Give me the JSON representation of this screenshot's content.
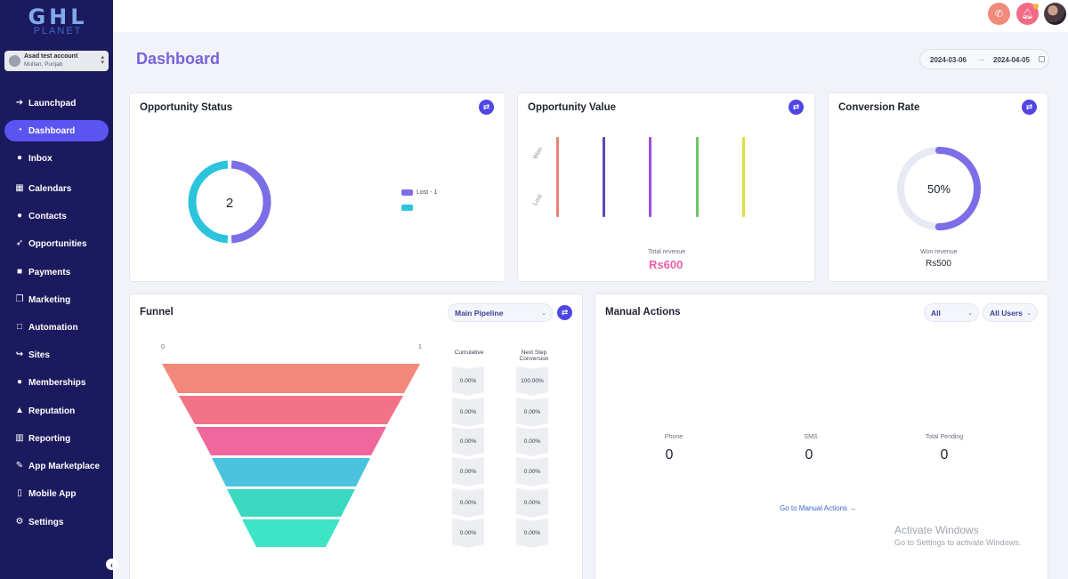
{
  "brand": {
    "logo_main": "GHL",
    "logo_sub": "PLANET"
  },
  "account": {
    "name": "Asad test account",
    "location": "Multan, Punjab"
  },
  "nav": [
    {
      "label": "Launchpad",
      "icon": "arrow-circle-icon"
    },
    {
      "label": "Dashboard",
      "icon": "gauge-icon"
    },
    {
      "label": "Inbox",
      "icon": "chat-icon"
    },
    {
      "label": "Calendars",
      "icon": "calendar-icon"
    },
    {
      "label": "Contacts",
      "icon": "users-icon"
    },
    {
      "label": "Opportunities",
      "icon": "rocket-icon"
    },
    {
      "label": "Payments",
      "icon": "card-icon"
    },
    {
      "label": "Marketing",
      "icon": "document-icon"
    },
    {
      "label": "Automation",
      "icon": "square-icon"
    },
    {
      "label": "Sites",
      "icon": "share-icon"
    },
    {
      "label": "Memberships",
      "icon": "group-icon"
    },
    {
      "label": "Reputation",
      "icon": "thumbs-up-icon"
    },
    {
      "label": "Reporting",
      "icon": "chart-icon"
    },
    {
      "label": "App Marketplace",
      "icon": "store-icon"
    },
    {
      "label": "Mobile App",
      "icon": "phone-icon"
    },
    {
      "label": "Settings",
      "icon": "gear-icon"
    }
  ],
  "header": {
    "title": "Dashboard",
    "date_start": "2024-03-06",
    "date_end": "2024-04-05"
  },
  "colors": {
    "sidebar": "#1c1a5e",
    "accent": "#5a54f0",
    "lost": "#7b6ee6",
    "open": "#2bc4dc",
    "revenue": "#ee5fa7"
  },
  "opportunity_status": {
    "title": "Opportunity Status",
    "total": "2",
    "legend": [
      {
        "label": "Lost - 1",
        "color": "#7b6ee6"
      },
      {
        "label": "",
        "color": "#2bc4dc"
      }
    ],
    "chart_data": {
      "type": "pie",
      "labels": [
        "Lost",
        ""
      ],
      "values": [
        1,
        1
      ]
    }
  },
  "opportunity_value": {
    "title": "Opportunity Value",
    "axis_labels": [
      "Won",
      "Lost"
    ],
    "bar_colors": [
      "#e8837a",
      "#5a4bb0",
      "#9b4fe0",
      "#6fc76a",
      "#d8e03a"
    ],
    "total_label": "Total revenue",
    "total_value": "Rs600"
  },
  "conversion": {
    "title": "Conversion Rate",
    "percent_label": "50%",
    "percent": 50,
    "won_label": "Won revenue",
    "won_value": "Rs500"
  },
  "funnel": {
    "title": "Funnel",
    "pipeline": "Main Pipeline",
    "scale_min": "0",
    "scale_max": "1",
    "col_cumulative": "Cumulative",
    "col_next_line1": "Next Step",
    "col_next_line2": "Conversion",
    "stages": [
      {
        "color": "#f3887a",
        "cumulative": "0.00%",
        "next": "100.00%"
      },
      {
        "color": "#f27288",
        "cumulative": "0.00%",
        "next": "0.00%"
      },
      {
        "color": "#f0679c",
        "cumulative": "0.00%",
        "next": "0.00%"
      },
      {
        "color": "#4bc3de",
        "cumulative": "0.00%",
        "next": "0.00%"
      },
      {
        "color": "#3ad8c0",
        "cumulative": "0.00%",
        "next": "0.00%"
      },
      {
        "color": "#3de4c8",
        "cumulative": "0.00%",
        "next": "0.00%"
      }
    ]
  },
  "manual_actions": {
    "title": "Manual Actions",
    "filter_type": "All",
    "filter_users": "All Users",
    "stats": [
      {
        "label": "Phone",
        "value": "0"
      },
      {
        "label": "SMS",
        "value": "0"
      },
      {
        "label": "Total Pending",
        "value": "0"
      }
    ],
    "link": "Go to Manual Actions →"
  },
  "watermark": {
    "line1": "Activate Windows",
    "line2": "Go to Settings to activate Windows."
  }
}
